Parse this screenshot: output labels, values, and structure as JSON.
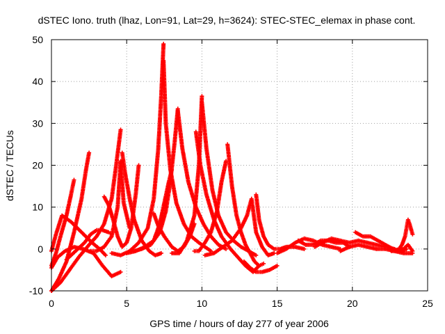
{
  "chart_data": {
    "type": "scatter",
    "title": "dSTEC Iono. truth (lhaz, Lon=91, Lat=29, h=3624): STEC-STEC_elemax in phase cont.",
    "xlabel": "GPS time / hours of day 277 of year 2006",
    "ylabel": "dSTEC  / TECUs",
    "xlim": [
      0,
      25
    ],
    "ylim": [
      -10,
      50
    ],
    "xticks": [
      0,
      5,
      10,
      15,
      20,
      25
    ],
    "yticks": [
      -10,
      0,
      10,
      20,
      30,
      40,
      50
    ],
    "xtick_labels": [
      "0",
      "5",
      "10",
      "15",
      "20",
      "25"
    ],
    "ytick_labels": [
      "-10",
      "0",
      "10",
      "20",
      "30",
      "40",
      "50"
    ],
    "grid": true,
    "marker": "plus",
    "color": "#ff0000",
    "series": [
      {
        "x": [
          0.0,
          0.3,
          0.6,
          1.0,
          1.3,
          1.5
        ],
        "y": [
          -4.0,
          -1.0,
          3.0,
          8.0,
          13.0,
          16.5
        ]
      },
      {
        "x": [
          0.0,
          0.5,
          1.0,
          1.5,
          2.0,
          2.3,
          2.5
        ],
        "y": [
          -10.0,
          -7.0,
          -3.0,
          4.0,
          12.0,
          19.0,
          23.0
        ]
      },
      {
        "x": [
          0.0,
          0.4,
          0.9,
          1.5,
          2.1,
          2.8,
          3.4,
          4.0,
          4.6
        ],
        "y": [
          -4.5,
          -2.0,
          -0.5,
          0.5,
          0.0,
          -1.0,
          -4.0,
          -6.5,
          -5.5
        ]
      },
      {
        "x": [
          0.0,
          0.3,
          0.7,
          1.3,
          2.0,
          2.7,
          3.2,
          3.6
        ],
        "y": [
          -0.5,
          3.5,
          8.0,
          6.5,
          4.0,
          1.5,
          0.0,
          -1.5
        ]
      },
      {
        "x": [
          0.0,
          0.6,
          1.2,
          1.8,
          2.5,
          3.0,
          3.5,
          4.0,
          4.3,
          4.6
        ],
        "y": [
          -10.0,
          -8.0,
          -5.0,
          -2.0,
          1.0,
          3.0,
          6.0,
          12.0,
          20.0,
          28.5
        ]
      },
      {
        "x": [
          1.0,
          1.6,
          2.2,
          2.6,
          3.0,
          3.4,
          3.8,
          4.0
        ],
        "y": [
          -2.5,
          -0.5,
          1.5,
          3.5,
          4.5,
          4.5,
          4.0,
          3.5
        ]
      },
      {
        "x": [
          3.5,
          3.8,
          4.1,
          4.4,
          4.7,
          5.0,
          5.3,
          5.6,
          5.8
        ],
        "y": [
          12.5,
          10.5,
          7.0,
          3.0,
          0.5,
          1.5,
          5.0,
          13.0,
          20.0
        ]
      },
      {
        "x": [
          4.7,
          4.9,
          5.2,
          5.5,
          6.0,
          6.5,
          6.9,
          7.3
        ],
        "y": [
          23.0,
          18.0,
          12.0,
          7.0,
          2.0,
          -0.5,
          -1.5,
          -1.0
        ]
      },
      {
        "x": [
          2.6,
          3.0,
          3.5,
          4.0,
          4.4,
          4.6,
          4.8,
          5.2
        ],
        "y": [
          -0.5,
          -0.5,
          0.5,
          3.0,
          10.0,
          21.0,
          11.0,
          5.0
        ]
      },
      {
        "x": [
          4.0,
          4.6,
          5.2,
          5.8,
          6.4,
          6.8,
          7.1,
          7.3,
          7.45
        ],
        "y": [
          -1.0,
          -1.5,
          -0.5,
          1.5,
          5.0,
          12.0,
          24.0,
          37.0,
          49.0
        ]
      },
      {
        "x": [
          7.45,
          7.6,
          7.9,
          8.3,
          8.8,
          9.3,
          9.8,
          10.2,
          10.6
        ],
        "y": [
          45.0,
          30.0,
          19.0,
          11.0,
          6.0,
          3.0,
          1.5,
          0.5,
          -0.5
        ]
      },
      {
        "x": [
          5.5,
          6.0,
          6.6,
          7.2,
          7.6,
          7.9,
          8.2,
          8.4
        ],
        "y": [
          -0.5,
          0.0,
          1.0,
          4.0,
          9.0,
          16.0,
          26.0,
          33.5
        ]
      },
      {
        "x": [
          8.4,
          8.7,
          9.1,
          9.6,
          10.1,
          10.6,
          11.1,
          11.6
        ],
        "y": [
          33.0,
          24.0,
          16.0,
          10.0,
          6.0,
          3.0,
          1.0,
          0.0
        ]
      },
      {
        "x": [
          6.8,
          7.1,
          7.5,
          8.0,
          8.4,
          8.8,
          9.2,
          9.5
        ],
        "y": [
          8.5,
          5.5,
          3.0,
          0.5,
          -0.5,
          0.5,
          3.0,
          6.0
        ]
      },
      {
        "x": [
          5.0,
          5.6,
          6.2,
          6.8,
          7.2,
          7.5,
          7.8,
          8.0
        ],
        "y": [
          -1.0,
          -0.5,
          0.5,
          2.0,
          6.0,
          11.0,
          16.0,
          19.0
        ]
      },
      {
        "x": [
          8.0,
          8.5,
          9.0,
          9.5,
          9.8,
          10.0
        ],
        "y": [
          -1.0,
          -1.0,
          2.0,
          8.0,
          20.0,
          36.5
        ]
      },
      {
        "x": [
          10.0,
          10.3,
          10.7,
          11.1,
          11.6,
          12.1,
          12.6,
          13.1,
          13.6
        ],
        "y": [
          35.0,
          24.0,
          14.0,
          8.0,
          4.0,
          2.0,
          0.5,
          -0.5,
          -1.5
        ]
      },
      {
        "x": [
          9.5,
          9.8,
          10.2,
          10.6,
          11.0,
          11.3,
          11.6
        ],
        "y": [
          -0.5,
          -0.5,
          1.5,
          4.0,
          9.0,
          16.0,
          21.0
        ]
      },
      {
        "x": [
          9.6,
          9.9,
          10.3,
          10.8,
          11.3,
          11.9,
          12.4,
          12.9,
          13.4,
          13.8
        ],
        "y": [
          28.0,
          20.0,
          13.0,
          7.0,
          3.0,
          0.0,
          -2.0,
          -4.0,
          -5.5,
          -4.0
        ]
      },
      {
        "x": [
          11.7,
          12.0,
          12.3,
          12.6,
          12.9,
          13.2,
          13.5,
          13.8,
          14.1
        ],
        "y": [
          25.0,
          15.0,
          8.0,
          4.0,
          1.0,
          -1.0,
          -3.0,
          -4.0,
          -3.5
        ]
      },
      {
        "x": [
          10.2,
          10.8,
          11.4,
          12.0,
          12.6,
          13.0,
          13.3,
          13.6,
          14.0,
          14.4,
          14.8
        ],
        "y": [
          -1.5,
          -1.0,
          0.5,
          2.0,
          5.0,
          8.0,
          12.0,
          4.0,
          0.5,
          -1.5,
          -1.0
        ]
      },
      {
        "x": [
          13.6,
          13.8,
          14.1,
          14.4,
          14.8,
          15.2,
          15.6,
          16.2,
          16.8
        ],
        "y": [
          13.0,
          7.0,
          3.0,
          1.0,
          0.0,
          0.0,
          0.5,
          0.5,
          0.0
        ]
      },
      {
        "x": [
          12.8,
          13.2,
          13.6,
          14.0,
          14.5,
          15.0
        ],
        "y": [
          -3.0,
          -4.5,
          -5.5,
          -5.5,
          -5.0,
          -4.0
        ]
      },
      {
        "x": [
          15.0,
          15.6,
          16.2,
          16.8,
          17.4,
          18.0,
          18.6,
          19.2
        ],
        "y": [
          -1.0,
          0.0,
          1.5,
          2.5,
          2.0,
          1.0,
          0.5,
          0.0
        ]
      },
      {
        "x": [
          16.4,
          16.9,
          17.4,
          17.9,
          18.4,
          18.9,
          19.4,
          19.8
        ],
        "y": [
          2.0,
          1.0,
          1.0,
          2.0,
          2.0,
          1.5,
          1.5,
          0.5
        ]
      },
      {
        "x": [
          17.5,
          18.0,
          18.6,
          19.2,
          19.8,
          20.4,
          21.0,
          21.6,
          22.2,
          22.8
        ],
        "y": [
          0.5,
          1.5,
          2.5,
          2.0,
          1.5,
          2.0,
          1.5,
          1.0,
          0.5,
          0.0
        ]
      },
      {
        "x": [
          19.2,
          19.8,
          20.4,
          21.0,
          21.6,
          22.2,
          22.8,
          23.4,
          24.0
        ],
        "y": [
          -0.5,
          0.5,
          1.0,
          0.5,
          0.0,
          0.0,
          -0.5,
          -1.0,
          -1.0
        ]
      },
      {
        "x": [
          20.2,
          20.7,
          21.2,
          21.7,
          22.2,
          22.7,
          23.2,
          23.6
        ],
        "y": [
          4.0,
          3.0,
          3.0,
          2.0,
          1.0,
          0.0,
          -0.5,
          0.0
        ]
      },
      {
        "x": [
          22.8,
          23.1,
          23.3,
          23.5,
          23.6,
          23.7,
          23.8,
          24.0
        ],
        "y": [
          -0.5,
          0.0,
          1.0,
          3.0,
          5.0,
          7.0,
          6.0,
          3.5
        ]
      },
      {
        "x": [
          22.6,
          23.0,
          23.4,
          23.7,
          24.0
        ],
        "y": [
          -0.5,
          -0.5,
          0.0,
          1.0,
          -0.5
        ]
      }
    ]
  }
}
